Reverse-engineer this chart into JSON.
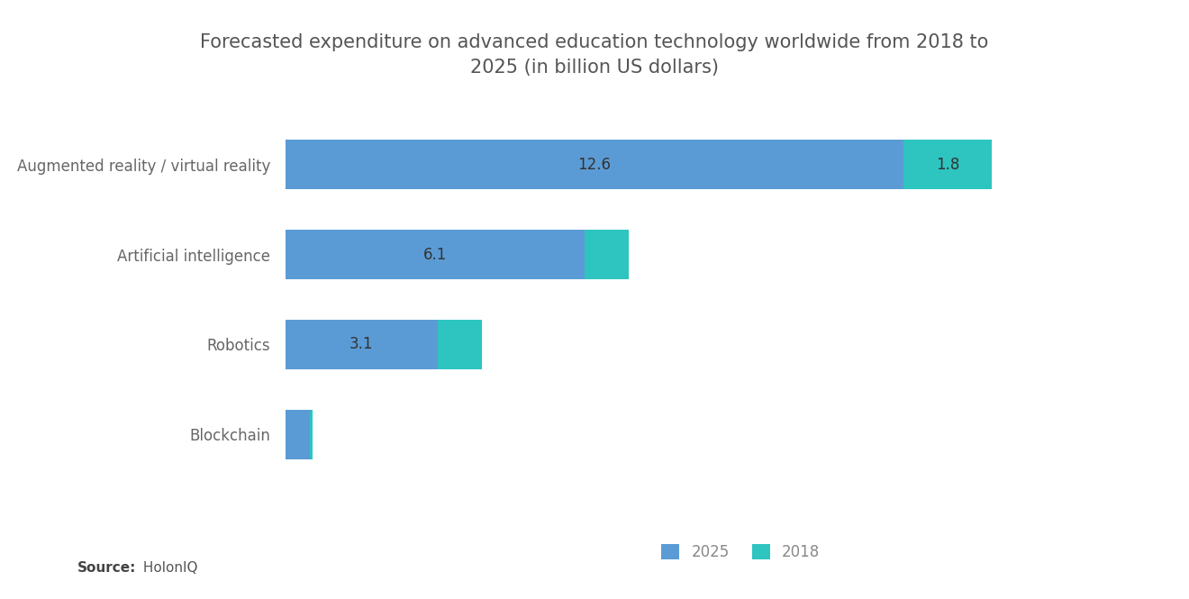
{
  "title": "Forecasted expenditure on advanced education technology worldwide from 2018 to\n2025 (in billion US dollars)",
  "categories": [
    "Augmented reality / virtual reality",
    "Artificial intelligence",
    "Robotics",
    "Blockchain"
  ],
  "values_2025": [
    12.6,
    6.1,
    3.1,
    0.5
  ],
  "values_2018": [
    1.8,
    0.9,
    0.9,
    0.05
  ],
  "color_2025": "#5B9BD5",
  "color_2018": "#2EC4C0",
  "label_2025": "2025",
  "label_2018": "2018",
  "source_bold": "Source:",
  "source_normal": " HolonIQ",
  "background_color": "#FFFFFF",
  "title_fontsize": 15,
  "ytick_fontsize": 12,
  "bar_label_fontsize": 12,
  "legend_fontsize": 12,
  "source_fontsize": 11,
  "bar_height": 0.55,
  "xlim_max": 16.0,
  "ylim_min": -0.7,
  "ylim_max": 3.7
}
